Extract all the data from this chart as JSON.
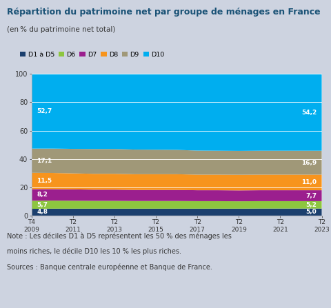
{
  "title": "Répartition du patrimoine net par groupe de ménages en France",
  "subtitle": "(en % du patrimoine net total)",
  "background_color": "#cdd3e0",
  "plot_background": "#ffffff",
  "ylim": [
    0,
    100
  ],
  "series_labels": [
    "D1 à D5",
    "D6",
    "D7",
    "D8",
    "D9",
    "D10"
  ],
  "colors": [
    "#1b3f6e",
    "#8dc63f",
    "#9b1f8e",
    "#f7941d",
    "#a09878",
    "#00aeef"
  ],
  "x_tick_labels": [
    "T4\n2009",
    "T2\n2011",
    "T2\n2013",
    "T2\n2015",
    "T2\n2017",
    "T2\n2019",
    "T2\n2021",
    "T2\n2023"
  ],
  "x_tick_positions": [
    0,
    2,
    4,
    6,
    8,
    10,
    12,
    14
  ],
  "n_points": 15,
  "data": {
    "D1a5": [
      4.8,
      4.9,
      4.9,
      4.9,
      4.9,
      4.9,
      4.9,
      4.9,
      4.9,
      4.9,
      4.9,
      5.0,
      5.0,
      5.0,
      5.0
    ],
    "D6": [
      5.7,
      5.7,
      5.6,
      5.5,
      5.5,
      5.4,
      5.4,
      5.4,
      5.3,
      5.3,
      5.2,
      5.2,
      5.2,
      5.2,
      5.2
    ],
    "D7": [
      8.2,
      8.1,
      8.0,
      7.9,
      7.9,
      7.8,
      7.8,
      7.8,
      7.7,
      7.7,
      7.7,
      7.7,
      7.7,
      7.7,
      7.7
    ],
    "D8": [
      11.5,
      11.4,
      11.3,
      11.2,
      11.2,
      11.1,
      11.1,
      11.1,
      11.0,
      11.0,
      11.0,
      11.0,
      11.0,
      11.0,
      11.0
    ],
    "D9": [
      17.1,
      17.2,
      17.3,
      17.5,
      17.5,
      17.4,
      17.3,
      17.2,
      17.0,
      16.9,
      16.9,
      16.9,
      16.9,
      16.9,
      16.9
    ],
    "D10": [
      52.7,
      52.7,
      52.9,
      53.0,
      53.0,
      53.4,
      53.5,
      53.6,
      54.1,
      54.2,
      54.3,
      54.2,
      54.2,
      54.2,
      54.2
    ]
  },
  "annotations_left": {
    "D10": "52,7",
    "D9": "17,1",
    "D8": "11,5",
    "D7": "8,2",
    "D6": "5,7",
    "D1a5": "4,8"
  },
  "annotations_right": {
    "D10": "54,2",
    "D9": "16,9",
    "D8": "11,0",
    "D7": "7,7",
    "D6": "5,2",
    "D1a5": "5,0"
  },
  "note_line1": "Note : Les déciles D1 à D5 représentent les 50 % des ménages les",
  "note_line2": "moins riches, le décile D10 les 10 % les plus riches.",
  "sources": "Sources : Banque centrale européenne et Banque de France."
}
